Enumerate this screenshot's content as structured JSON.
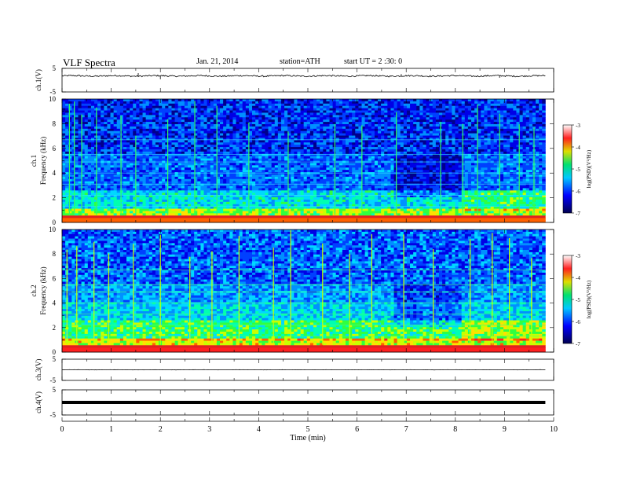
{
  "header": {
    "title": "VLF Spectra",
    "date": "Jan. 21, 2014",
    "station": "station=ATH",
    "start": "start UT = 2 :30: 0"
  },
  "chart_data": [
    {
      "panel": "ch1-waveform",
      "type": "line",
      "ylabel": "ch.1(V)",
      "ylim": [
        -5,
        5
      ],
      "y_ticks": [
        "5",
        "-5"
      ],
      "xlim": [
        0,
        10
      ],
      "x_end": 9.83,
      "level": 1.8,
      "noise": 0.3,
      "spikes": [
        {
          "x": 2.0,
          "y": 0.4
        },
        {
          "x": 1.55,
          "y": 3.0
        },
        {
          "x": 8.9,
          "y": 1.0
        },
        {
          "x": 6.9,
          "y": 2.6
        }
      ]
    },
    {
      "panel": "ch1-spectrogram",
      "type": "heatmap",
      "ylabel_channel": "ch.1",
      "ylabel": "Frequency (kHz)",
      "ylim": [
        0,
        10
      ],
      "y_ticks": [
        "0",
        "2",
        "4",
        "6",
        "8",
        "10"
      ],
      "xlim": [
        0,
        10
      ],
      "x_end": 9.83,
      "bright_lines_x": [
        0.15,
        0.25,
        0.4,
        0.7,
        1.2,
        1.5,
        2.15,
        2.7,
        3.15,
        3.8,
        4.6,
        5.55,
        6.1,
        6.8,
        7.7,
        8.15,
        8.45,
        8.9,
        9.3,
        9.6
      ],
      "regime_changes_x": [
        6.75,
        8.1
      ],
      "colorbar": {
        "label": "log(PSD)(V²/Hz)",
        "ticks": [
          "-3",
          "-4",
          "-5",
          "-6",
          "-7"
        ],
        "range": [
          -7,
          -3
        ]
      }
    },
    {
      "panel": "ch2-spectrogram",
      "type": "heatmap",
      "ylabel_channel": "ch.2",
      "ylabel": "Frequency (kHz)",
      "ylim": [
        0,
        10
      ],
      "y_ticks": [
        "0",
        "2",
        "4",
        "6",
        "8",
        "10"
      ],
      "xlim": [
        0,
        10
      ],
      "x_end": 9.83,
      "bright_lines_x": [
        0.1,
        0.3,
        0.65,
        0.95,
        1.45,
        2.0,
        2.6,
        3.05,
        3.6,
        4.3,
        4.65,
        5.3,
        5.85,
        6.3,
        6.95,
        7.55,
        8.3,
        8.75,
        9.1,
        9.55
      ],
      "regime_changes_x": [
        6.75,
        8.1
      ],
      "colorbar": {
        "label": "log(PSD)(V²/Hz)",
        "ticks": [
          "-3",
          "-4",
          "-5",
          "-6",
          "-7"
        ],
        "range": [
          -7,
          -3
        ]
      }
    },
    {
      "panel": "ch3-waveform",
      "type": "line",
      "ylabel": "ch.3(V)",
      "ylim": [
        -5,
        5
      ],
      "y_ticks": [
        "5",
        "-5"
      ],
      "xlim": [
        0,
        10
      ],
      "x_end": 9.83,
      "level": 0.0,
      "noise": 0.05
    },
    {
      "panel": "ch4-waveform",
      "type": "line",
      "ylabel": "ch.4(V)",
      "ylim": [
        -5,
        5
      ],
      "y_ticks": [
        "5",
        "-5"
      ],
      "xlim": [
        0,
        10
      ],
      "x_end": 9.83,
      "level": 0.0,
      "noise": 0.0,
      "thick": true
    }
  ],
  "x_axis": {
    "label": "Time (min)",
    "ticks": [
      "0",
      "1",
      "2",
      "3",
      "4",
      "5",
      "6",
      "7",
      "8",
      "9",
      "10"
    ]
  }
}
